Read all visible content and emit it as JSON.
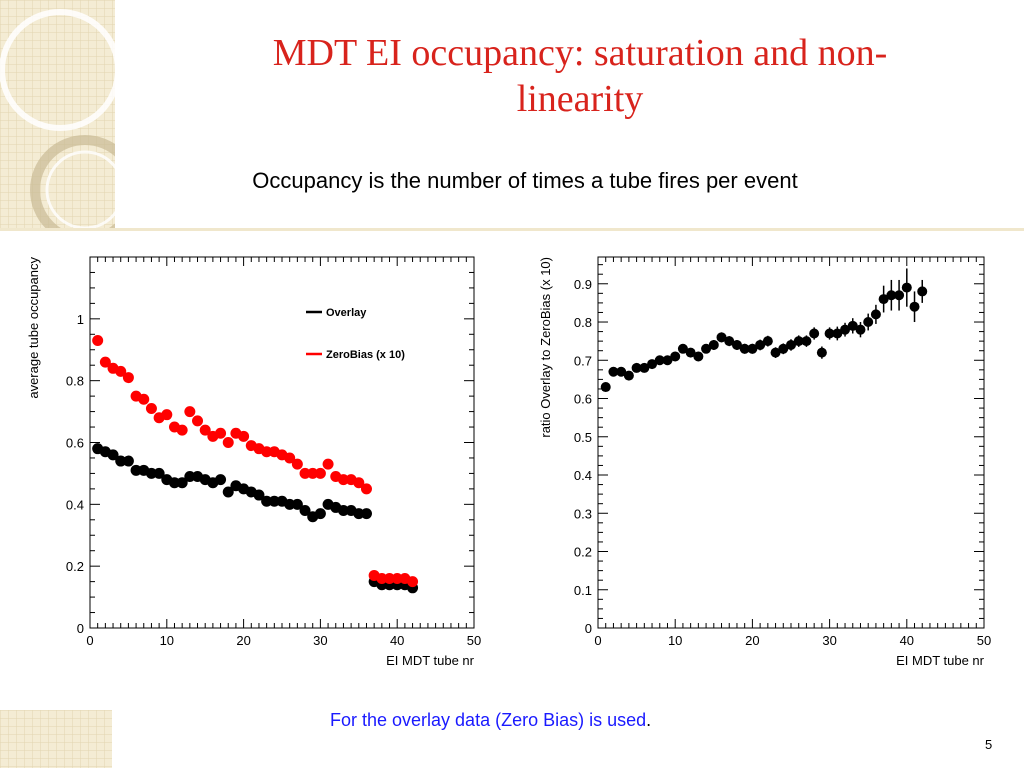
{
  "slide": {
    "title": "MDT EI occupancy: saturation and non-linearity",
    "subtitle": "Occupancy is the number of times a tube fires per event",
    "footnote": "For the overlay data (Zero Bias) is used",
    "footnote_end": ".",
    "page_number": "5",
    "accent_color": "#d8231c",
    "footnote_color": "#1a1aff"
  },
  "chart_data": [
    {
      "type": "scatter",
      "xlabel": "EI MDT tube nr",
      "ylabel": "average tube occupancy",
      "xlim": [
        0,
        50
      ],
      "ylim": [
        0,
        1.2
      ],
      "x_ticks": [
        0,
        10,
        20,
        30,
        40,
        50
      ],
      "y_ticks": [
        0,
        0.2,
        0.4,
        0.6,
        0.8,
        1
      ],
      "legend_position": "top-right",
      "series": [
        {
          "name": "Overlay",
          "color": "#000000",
          "x": [
            1,
            2,
            3,
            4,
            5,
            6,
            7,
            8,
            9,
            10,
            11,
            12,
            13,
            14,
            15,
            16,
            17,
            18,
            19,
            20,
            21,
            22,
            23,
            24,
            25,
            26,
            27,
            28,
            29,
            30,
            31,
            32,
            33,
            34,
            35,
            36,
            37,
            38,
            39,
            40,
            41,
            42
          ],
          "y": [
            0.58,
            0.57,
            0.56,
            0.54,
            0.54,
            0.51,
            0.51,
            0.5,
            0.5,
            0.48,
            0.47,
            0.47,
            0.49,
            0.49,
            0.48,
            0.47,
            0.48,
            0.44,
            0.46,
            0.45,
            0.44,
            0.43,
            0.41,
            0.41,
            0.41,
            0.4,
            0.4,
            0.38,
            0.36,
            0.37,
            0.4,
            0.39,
            0.38,
            0.38,
            0.37,
            0.37,
            0.15,
            0.14,
            0.14,
            0.14,
            0.14,
            0.13
          ]
        },
        {
          "name": "ZeroBias (x 10)",
          "color": "#ff0000",
          "x": [
            1,
            2,
            3,
            4,
            5,
            6,
            7,
            8,
            9,
            10,
            11,
            12,
            13,
            14,
            15,
            16,
            17,
            18,
            19,
            20,
            21,
            22,
            23,
            24,
            25,
            26,
            27,
            28,
            29,
            30,
            31,
            32,
            33,
            34,
            35,
            36,
            37,
            38,
            39,
            40,
            41,
            42
          ],
          "y": [
            0.93,
            0.86,
            0.84,
            0.83,
            0.81,
            0.75,
            0.74,
            0.71,
            0.68,
            0.69,
            0.65,
            0.64,
            0.7,
            0.67,
            0.64,
            0.62,
            0.63,
            0.6,
            0.63,
            0.62,
            0.59,
            0.58,
            0.57,
            0.57,
            0.56,
            0.55,
            0.53,
            0.5,
            0.5,
            0.5,
            0.53,
            0.49,
            0.48,
            0.48,
            0.47,
            0.45,
            0.17,
            0.16,
            0.16,
            0.16,
            0.16,
            0.15
          ]
        }
      ]
    },
    {
      "type": "scatter",
      "xlabel": "EI MDT tube nr",
      "ylabel": "ratio Overlay to ZeroBias (x 10)",
      "xlim": [
        0,
        50
      ],
      "ylim": [
        0,
        0.97
      ],
      "x_ticks": [
        0,
        10,
        20,
        30,
        40,
        50
      ],
      "y_ticks": [
        0,
        0.1,
        0.2,
        0.3,
        0.4,
        0.5,
        0.6,
        0.7,
        0.8,
        0.9
      ],
      "series": [
        {
          "name": "",
          "color": "#000000",
          "x": [
            1,
            2,
            3,
            4,
            5,
            6,
            7,
            8,
            9,
            10,
            11,
            12,
            13,
            14,
            15,
            16,
            17,
            18,
            19,
            20,
            21,
            22,
            23,
            24,
            25,
            26,
            27,
            28,
            29,
            30,
            31,
            32,
            33,
            34,
            35,
            36,
            37,
            38,
            39,
            40,
            41,
            42
          ],
          "y": [
            0.63,
            0.67,
            0.67,
            0.66,
            0.68,
            0.68,
            0.69,
            0.7,
            0.7,
            0.71,
            0.73,
            0.72,
            0.71,
            0.73,
            0.74,
            0.76,
            0.75,
            0.74,
            0.73,
            0.73,
            0.74,
            0.75,
            0.72,
            0.73,
            0.74,
            0.75,
            0.75,
            0.77,
            0.72,
            0.77,
            0.77,
            0.78,
            0.79,
            0.78,
            0.8,
            0.82,
            0.86,
            0.87,
            0.87,
            0.89,
            0.84,
            0.88
          ],
          "err": [
            0.01,
            0.01,
            0.01,
            0.01,
            0.01,
            0.01,
            0.01,
            0.012,
            0.012,
            0.012,
            0.012,
            0.012,
            0.012,
            0.012,
            0.013,
            0.013,
            0.013,
            0.013,
            0.013,
            0.013,
            0.014,
            0.014,
            0.014,
            0.014,
            0.015,
            0.015,
            0.015,
            0.016,
            0.016,
            0.016,
            0.018,
            0.018,
            0.02,
            0.02,
            0.022,
            0.025,
            0.035,
            0.04,
            0.04,
            0.05,
            0.04,
            0.03
          ]
        }
      ]
    }
  ]
}
